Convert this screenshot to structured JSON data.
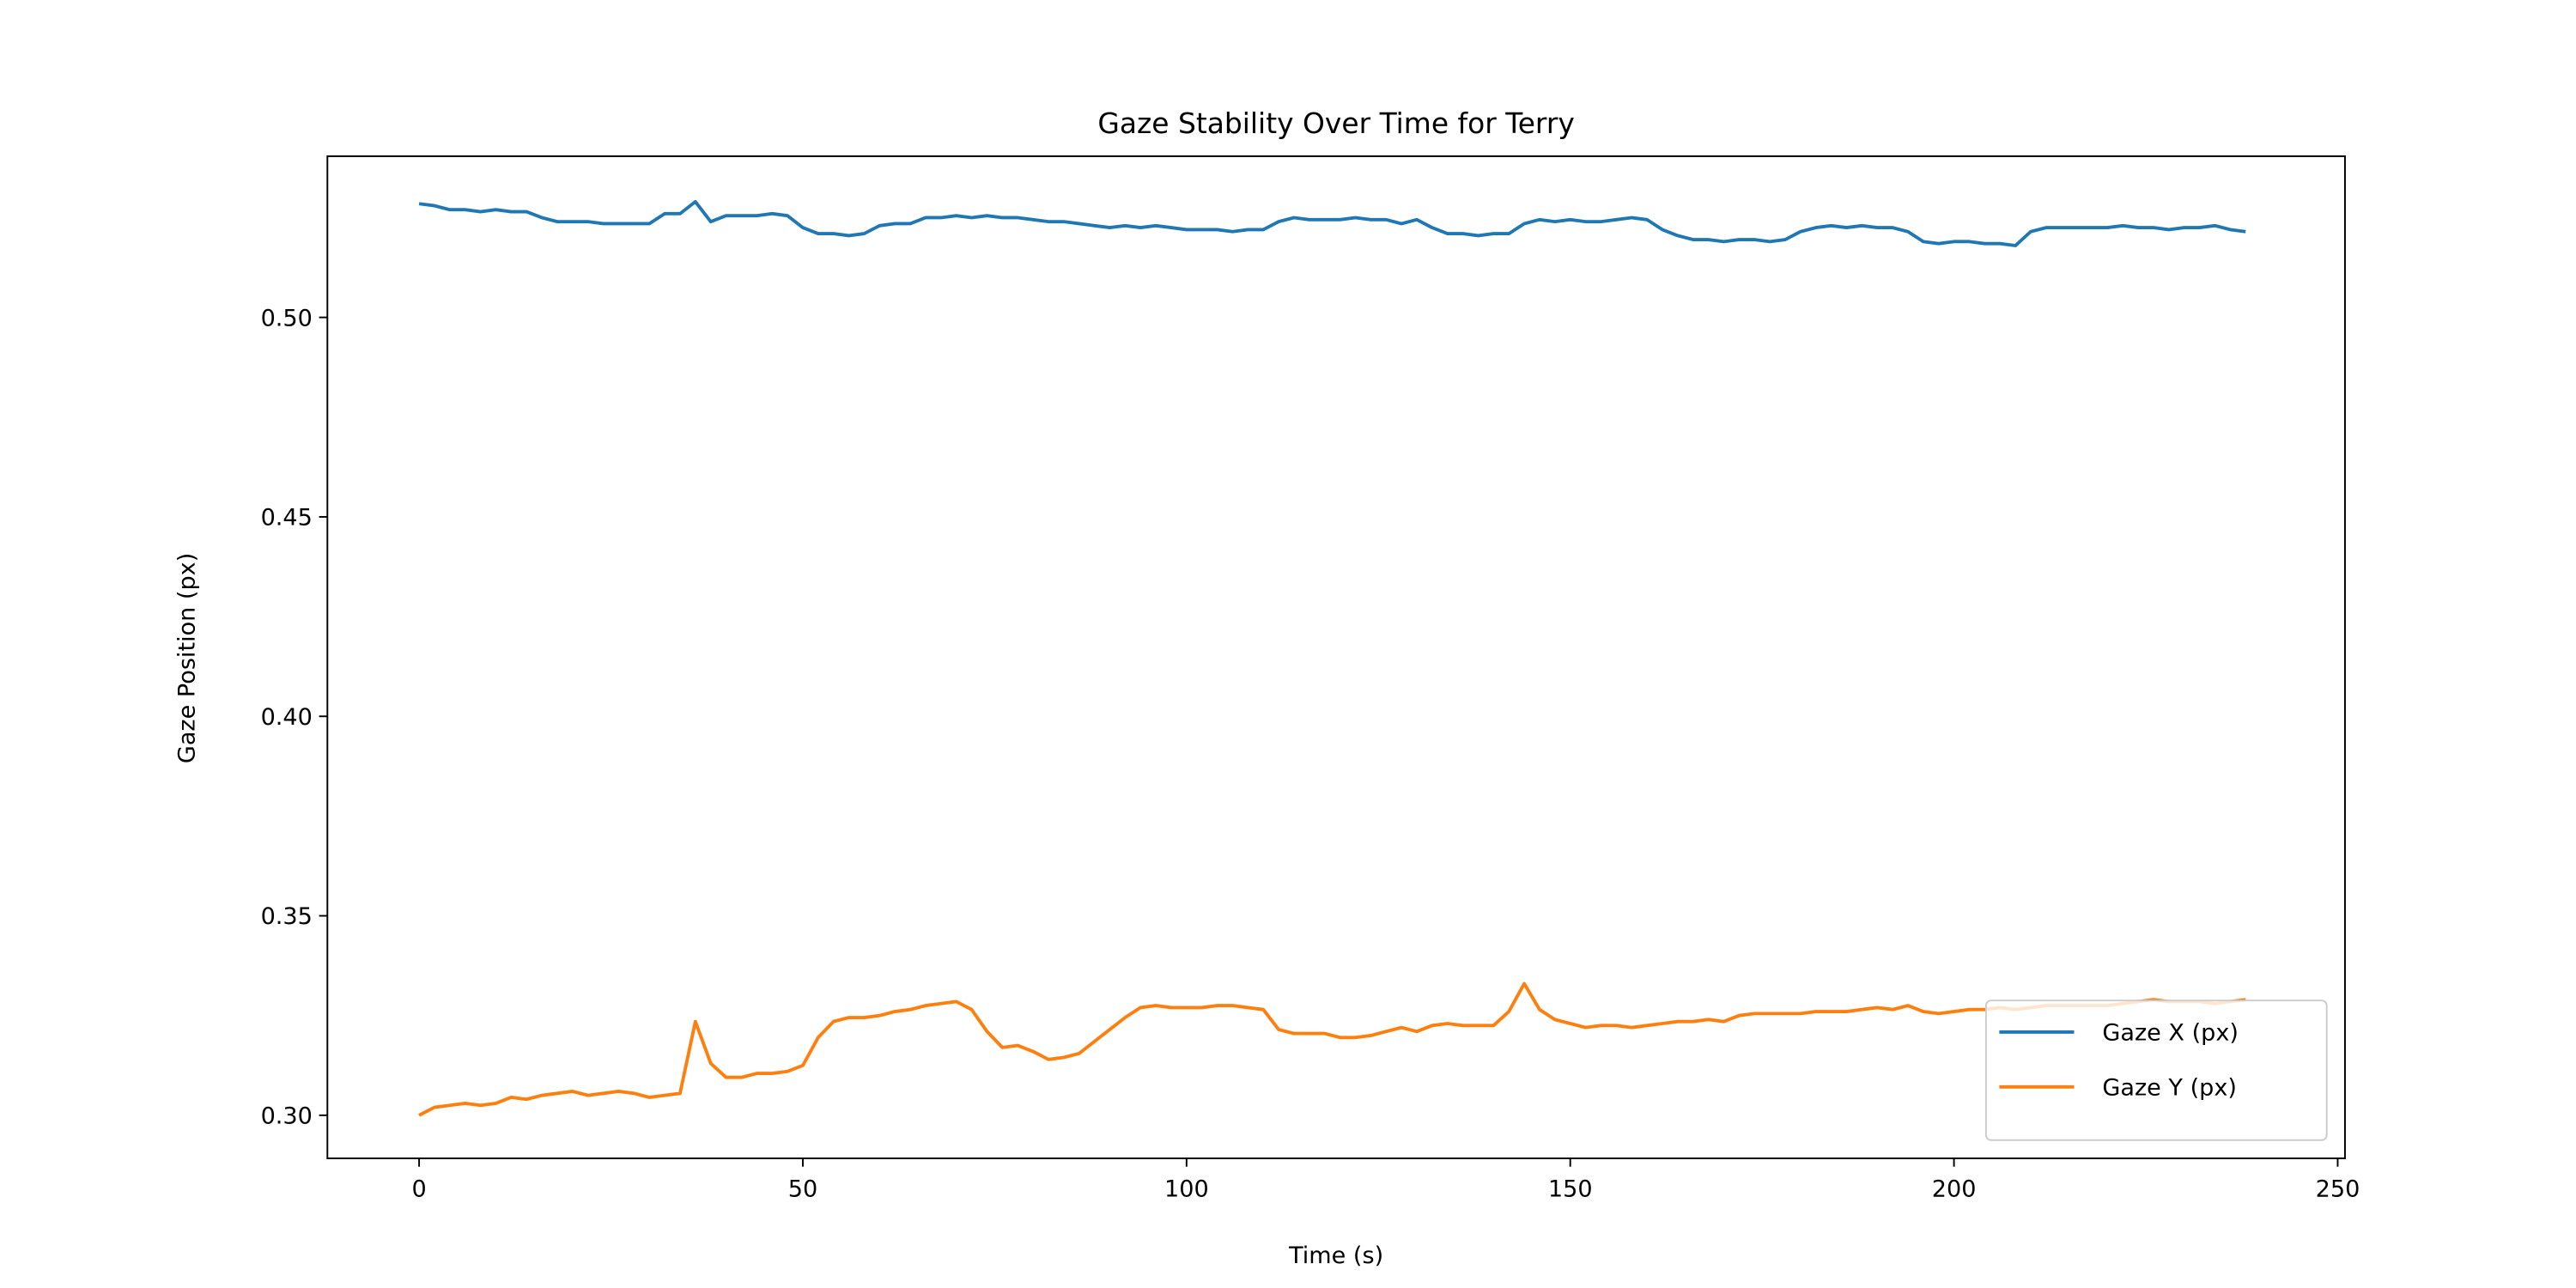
{
  "chart_data": {
    "type": "line",
    "title": "Gaze Stability Over Time for Terry",
    "xlabel": "Time (s)",
    "ylabel": "Gaze Position (px)",
    "x": [
      0,
      2,
      4,
      6,
      8,
      10,
      12,
      14,
      16,
      18,
      20,
      22,
      24,
      26,
      28,
      30,
      32,
      34,
      36,
      38,
      40,
      42,
      44,
      46,
      48,
      50,
      52,
      54,
      56,
      58,
      60,
      62,
      64,
      66,
      68,
      70,
      72,
      74,
      76,
      78,
      80,
      82,
      84,
      86,
      88,
      90,
      92,
      94,
      96,
      98,
      100,
      102,
      104,
      106,
      108,
      110,
      112,
      114,
      116,
      118,
      120,
      122,
      124,
      126,
      128,
      130,
      132,
      134,
      136,
      138,
      140,
      142,
      144,
      146,
      148,
      150,
      152,
      154,
      156,
      158,
      160,
      162,
      164,
      166,
      168,
      170,
      172,
      174,
      176,
      178,
      180,
      182,
      184,
      186,
      188,
      190,
      192,
      194,
      196,
      198,
      200,
      202,
      204,
      206,
      208,
      210,
      212,
      214,
      216,
      218,
      220,
      222,
      224,
      226,
      228,
      230,
      232,
      234,
      236,
      238
    ],
    "series": [
      {
        "name": "Gaze X (px)",
        "color": "#1f77b4",
        "values": [
          0.5285,
          0.528,
          0.527,
          0.527,
          0.5265,
          0.527,
          0.5265,
          0.5265,
          0.525,
          0.524,
          0.524,
          0.524,
          0.5235,
          0.5235,
          0.5235,
          0.5235,
          0.526,
          0.526,
          0.529,
          0.524,
          0.5255,
          0.5255,
          0.5255,
          0.526,
          0.5255,
          0.5225,
          0.521,
          0.521,
          0.5205,
          0.521,
          0.523,
          0.5235,
          0.5235,
          0.525,
          0.525,
          0.5255,
          0.525,
          0.5255,
          0.525,
          0.525,
          0.5245,
          0.524,
          0.524,
          0.5235,
          0.523,
          0.5225,
          0.523,
          0.5225,
          0.523,
          0.5225,
          0.522,
          0.522,
          0.522,
          0.5215,
          0.522,
          0.522,
          0.524,
          0.525,
          0.5245,
          0.5245,
          0.5245,
          0.525,
          0.5245,
          0.5245,
          0.5235,
          0.5245,
          0.5225,
          0.521,
          0.521,
          0.5205,
          0.521,
          0.521,
          0.5235,
          0.5245,
          0.524,
          0.5245,
          0.524,
          0.524,
          0.5245,
          0.525,
          0.5245,
          0.522,
          0.5205,
          0.5195,
          0.5195,
          0.519,
          0.5195,
          0.5195,
          0.519,
          0.5195,
          0.5215,
          0.5225,
          0.523,
          0.5225,
          0.523,
          0.5225,
          0.5225,
          0.5215,
          0.519,
          0.5185,
          0.519,
          0.519,
          0.5185,
          0.5185,
          0.518,
          0.5215,
          0.5225,
          0.5225,
          0.5225,
          0.5225,
          0.5225,
          0.523,
          0.5225,
          0.5225,
          0.522,
          0.5225,
          0.5225,
          0.523,
          0.522,
          0.5215
        ]
      },
      {
        "name": "Gaze Y (px)",
        "color": "#ff7f0e",
        "values": [
          0.3,
          0.302,
          0.3025,
          0.303,
          0.3025,
          0.303,
          0.3045,
          0.304,
          0.305,
          0.3055,
          0.306,
          0.305,
          0.3055,
          0.306,
          0.3055,
          0.3045,
          0.305,
          0.3055,
          0.3235,
          0.313,
          0.3095,
          0.3095,
          0.3105,
          0.3105,
          0.311,
          0.3125,
          0.3195,
          0.3235,
          0.3245,
          0.3245,
          0.325,
          0.326,
          0.3265,
          0.3275,
          0.328,
          0.3285,
          0.3265,
          0.321,
          0.317,
          0.3175,
          0.316,
          0.314,
          0.3145,
          0.3155,
          0.3185,
          0.3215,
          0.3245,
          0.327,
          0.3275,
          0.327,
          0.327,
          0.327,
          0.3275,
          0.3275,
          0.327,
          0.3265,
          0.3215,
          0.3205,
          0.3205,
          0.3205,
          0.3195,
          0.3195,
          0.32,
          0.321,
          0.322,
          0.321,
          0.3225,
          0.323,
          0.3225,
          0.3225,
          0.3225,
          0.326,
          0.333,
          0.3265,
          0.324,
          0.323,
          0.322,
          0.3225,
          0.3225,
          0.322,
          0.3225,
          0.323,
          0.3235,
          0.3235,
          0.324,
          0.3235,
          0.325,
          0.3255,
          0.3255,
          0.3255,
          0.3255,
          0.326,
          0.326,
          0.326,
          0.3265,
          0.327,
          0.3265,
          0.3275,
          0.326,
          0.3255,
          0.326,
          0.3265,
          0.3265,
          0.327,
          0.3265,
          0.327,
          0.3275,
          0.3275,
          0.3275,
          0.3275,
          0.3275,
          0.328,
          0.3285,
          0.329,
          0.3285,
          0.3285,
          0.3285,
          0.328,
          0.3285,
          0.329
        ]
      }
    ],
    "xlim": [
      -11.95,
      250.95
    ],
    "xticks": [
      0,
      50,
      100,
      150,
      200,
      250
    ],
    "ylim": [
      0.2892,
      0.5404
    ],
    "yticks": [
      {
        "value": 0.3,
        "label": "0.30"
      },
      {
        "value": 0.35,
        "label": "0.35"
      },
      {
        "value": 0.4,
        "label": "0.40"
      },
      {
        "value": 0.45,
        "label": "0.45"
      },
      {
        "value": 0.5,
        "label": "0.50"
      }
    ],
    "grid": false,
    "legend": "lower right"
  }
}
